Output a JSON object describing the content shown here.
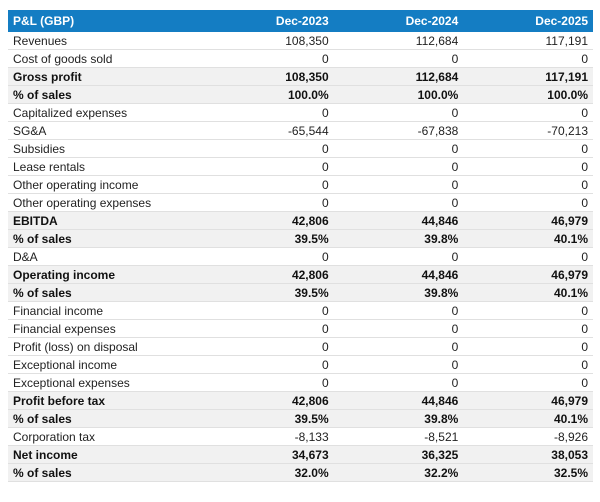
{
  "colors": {
    "header_bg": "#147dc3",
    "header_text": "#ffffff",
    "total_row_bg": "#f1f1f1",
    "row_border": "#e0e0e0"
  },
  "chart_data": {
    "type": "table",
    "title": "P&L (GBP)",
    "currency": "GBP",
    "columns": [
      "Dec-2023",
      "Dec-2024",
      "Dec-2025"
    ],
    "rows": [
      {
        "label": "Revenues",
        "type": "detail",
        "values": [
          "108,350",
          "112,684",
          "117,191"
        ]
      },
      {
        "label": "Cost of goods sold",
        "type": "detail",
        "values": [
          "0",
          "0",
          "0"
        ]
      },
      {
        "label": "Gross profit",
        "type": "total",
        "values": [
          "108,350",
          "112,684",
          "117,191"
        ]
      },
      {
        "label": "% of sales",
        "type": "total",
        "values": [
          "100.0%",
          "100.0%",
          "100.0%"
        ]
      },
      {
        "label": "Capitalized expenses",
        "type": "detail",
        "values": [
          "0",
          "0",
          "0"
        ]
      },
      {
        "label": "SG&A",
        "type": "detail",
        "values": [
          "-65,544",
          "-67,838",
          "-70,213"
        ]
      },
      {
        "label": "Subsidies",
        "type": "detail",
        "values": [
          "0",
          "0",
          "0"
        ]
      },
      {
        "label": "Lease rentals",
        "type": "detail",
        "values": [
          "0",
          "0",
          "0"
        ]
      },
      {
        "label": "Other operating income",
        "type": "detail",
        "values": [
          "0",
          "0",
          "0"
        ]
      },
      {
        "label": "Other operating expenses",
        "type": "detail",
        "values": [
          "0",
          "0",
          "0"
        ]
      },
      {
        "label": "EBITDA",
        "type": "total",
        "values": [
          "42,806",
          "44,846",
          "46,979"
        ]
      },
      {
        "label": "% of sales",
        "type": "total",
        "values": [
          "39.5%",
          "39.8%",
          "40.1%"
        ]
      },
      {
        "label": "D&A",
        "type": "detail",
        "values": [
          "0",
          "0",
          "0"
        ]
      },
      {
        "label": "Operating income",
        "type": "total",
        "values": [
          "42,806",
          "44,846",
          "46,979"
        ]
      },
      {
        "label": "% of sales",
        "type": "total",
        "values": [
          "39.5%",
          "39.8%",
          "40.1%"
        ]
      },
      {
        "label": "Financial income",
        "type": "detail",
        "values": [
          "0",
          "0",
          "0"
        ]
      },
      {
        "label": "Financial expenses",
        "type": "detail",
        "values": [
          "0",
          "0",
          "0"
        ]
      },
      {
        "label": "Profit (loss) on disposal",
        "type": "detail",
        "values": [
          "0",
          "0",
          "0"
        ]
      },
      {
        "label": "Exceptional income",
        "type": "detail",
        "values": [
          "0",
          "0",
          "0"
        ]
      },
      {
        "label": "Exceptional expenses",
        "type": "detail",
        "values": [
          "0",
          "0",
          "0"
        ]
      },
      {
        "label": "Profit before tax",
        "type": "total",
        "values": [
          "42,806",
          "44,846",
          "46,979"
        ]
      },
      {
        "label": "% of sales",
        "type": "total",
        "values": [
          "39.5%",
          "39.8%",
          "40.1%"
        ]
      },
      {
        "label": "Corporation tax",
        "type": "detail",
        "values": [
          "-8,133",
          "-8,521",
          "-8,926"
        ]
      },
      {
        "label": "Net income",
        "type": "total",
        "values": [
          "34,673",
          "36,325",
          "38,053"
        ]
      },
      {
        "label": "% of sales",
        "type": "total",
        "values": [
          "32.0%",
          "32.2%",
          "32.5%"
        ]
      }
    ]
  }
}
